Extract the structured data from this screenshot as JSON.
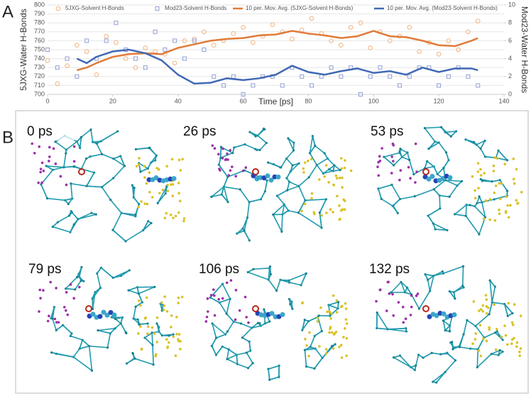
{
  "panel_labels": [
    "A",
    "B"
  ],
  "snapshots": [
    "0 ps",
    "26 ps",
    "53 ps",
    "79 ps",
    "106 ps",
    "132 ps"
  ],
  "chart_data": {
    "type": "scatter",
    "xlabel": "Time [ps]",
    "ylabel": "5JXG-Water H-Bonds",
    "y2label": "Mod23-Water H-Bonds",
    "xlim": [
      0,
      140
    ],
    "xticks": [
      0,
      20,
      40,
      60,
      80,
      100,
      120,
      140
    ],
    "ylim": [
      700,
      800
    ],
    "yticks": [
      700,
      710,
      720,
      730,
      740,
      750,
      760,
      770,
      780,
      790,
      800
    ],
    "y2lim": [
      0,
      10
    ],
    "y2ticks": [
      0,
      2,
      4,
      6,
      8,
      10
    ],
    "grid": true,
    "legend": "top",
    "series": [
      {
        "name": "5JXG-Solvent H-Bonds",
        "kind": "scatter",
        "marker": "circle",
        "color": "#f2b27e",
        "x": [
          0,
          3,
          6,
          9,
          12,
          15,
          18,
          21,
          24,
          27,
          30,
          33,
          36,
          39,
          42,
          45,
          48,
          51,
          54,
          57,
          60,
          63,
          66,
          69,
          72,
          75,
          78,
          81,
          84,
          87,
          90,
          93,
          96,
          99,
          102,
          105,
          108,
          111,
          114,
          117,
          120,
          123,
          126,
          129,
          132
        ],
        "values": [
          738,
          712,
          732,
          755,
          748,
          722,
          765,
          758,
          740,
          730,
          752,
          748,
          745,
          735,
          760,
          762,
          770,
          755,
          760,
          768,
          775,
          758,
          765,
          778,
          770,
          762,
          772,
          785,
          768,
          760,
          755,
          775,
          780,
          752,
          770,
          760,
          765,
          775,
          748,
          758,
          745,
          760,
          750,
          770,
          782
        ]
      },
      {
        "name": "Mod23-Solvent H-Bonds",
        "kind": "scatter",
        "marker": "square",
        "color": "#8f9fd6",
        "axis": "y2",
        "x": [
          0,
          3,
          6,
          9,
          12,
          15,
          18,
          21,
          24,
          27,
          30,
          33,
          36,
          39,
          42,
          45,
          48,
          51,
          54,
          57,
          60,
          63,
          66,
          69,
          72,
          75,
          78,
          81,
          84,
          87,
          90,
          93,
          96,
          99,
          102,
          105,
          108,
          111,
          114,
          117,
          120,
          123,
          126,
          129,
          132
        ],
        "values": [
          5,
          3,
          4,
          2,
          6,
          4,
          6,
          8,
          5,
          4,
          3,
          7,
          5,
          6,
          4,
          6,
          5,
          2,
          1,
          2,
          0,
          1,
          2,
          2,
          1,
          3,
          2,
          1,
          2,
          3,
          2,
          3,
          0,
          2,
          3,
          2,
          1,
          2,
          3,
          3,
          1,
          2,
          3,
          2,
          1
        ]
      },
      {
        "name": "10 per. Mov. Avg. (5JXG-Solvent H-Bonds)",
        "kind": "line",
        "color": "#e07b39",
        "x": [
          9,
          12,
          15,
          20,
          25,
          30,
          35,
          40,
          45,
          50,
          55,
          60,
          65,
          70,
          75,
          80,
          85,
          90,
          95,
          100,
          105,
          110,
          115,
          120,
          125,
          130,
          132
        ],
        "values": [
          727,
          730,
          735,
          742,
          745,
          746,
          745,
          752,
          756,
          760,
          762,
          763,
          766,
          767,
          771,
          768,
          766,
          763,
          765,
          771,
          765,
          764,
          760,
          755,
          754,
          760,
          763
        ]
      },
      {
        "name": "10 per. Mov. Avg. (Mod23-Solvent H-Bonds)",
        "kind": "line",
        "color": "#4169b5",
        "axis": "y2",
        "x": [
          9,
          12,
          15,
          20,
          25,
          30,
          35,
          40,
          45,
          50,
          55,
          60,
          65,
          70,
          75,
          80,
          85,
          90,
          95,
          100,
          105,
          110,
          115,
          120,
          125,
          130,
          132
        ],
        "values": [
          4.0,
          3.5,
          4.2,
          4.8,
          5.0,
          4.6,
          3.8,
          2.2,
          1.2,
          1.3,
          1.8,
          1.6,
          1.8,
          2.2,
          3.2,
          2.5,
          2.2,
          2.6,
          2.9,
          2.4,
          2.6,
          2.2,
          3.0,
          2.5,
          2.9,
          2.9,
          2.7
        ]
      }
    ]
  }
}
